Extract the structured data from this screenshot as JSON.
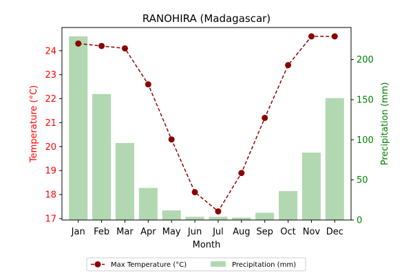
{
  "chart_data": {
    "type": "bar+line",
    "title": "RANOHIRA (Madagascar)",
    "xlabel": "Month",
    "categories": [
      "Jan",
      "Feb",
      "Mar",
      "Apr",
      "May",
      "Jun",
      "Jul",
      "Aug",
      "Sep",
      "Oct",
      "Nov",
      "Dec"
    ],
    "series": [
      {
        "name": "Max Temperature (°C)",
        "type": "line",
        "axis": "left",
        "color": "#8b0000",
        "style": "dashed",
        "marker": "circle",
        "values": [
          24.3,
          24.2,
          24.1,
          22.6,
          20.3,
          18.1,
          17.3,
          18.9,
          21.2,
          23.4,
          24.6,
          24.6
        ]
      },
      {
        "name": "Precipitation (mm)",
        "type": "bar",
        "axis": "right",
        "color": "#b2d8b2",
        "values": [
          229,
          157,
          96,
          40,
          12,
          4,
          4,
          3,
          9,
          36,
          84,
          152
        ]
      }
    ],
    "y_left": {
      "label": "Temperature (°C)",
      "color": "#ff0000",
      "range": [
        16.94,
        24.97
      ],
      "ticks": [
        17,
        18,
        19,
        20,
        21,
        22,
        23,
        24
      ]
    },
    "y_right": {
      "label": "Precipitation (mm)",
      "color": "#008000",
      "range": [
        0,
        240
      ],
      "ticks": [
        0,
        50,
        100,
        150,
        200
      ]
    },
    "grid": false,
    "legend_position": "bottom-center"
  }
}
